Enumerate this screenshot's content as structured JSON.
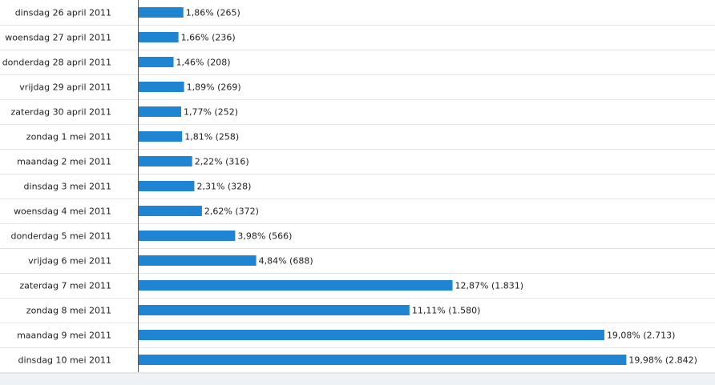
{
  "chart_data": {
    "type": "bar",
    "orientation": "horizontal",
    "categories": [
      "dinsdag 26 april 2011",
      "woensdag 27 april 2011",
      "donderdag 28 april 2011",
      "vrijdag 29 april 2011",
      "zaterdag 30 april 2011",
      "zondag 1 mei 2011",
      "maandag 2 mei 2011",
      "dinsdag 3 mei 2011",
      "woensdag 4 mei 2011",
      "donderdag 5 mei 2011",
      "vrijdag 6 mei 2011",
      "zaterdag 7 mei 2011",
      "zondag 8 mei 2011",
      "maandag 9 mei 2011",
      "dinsdag 10 mei 2011"
    ],
    "values": [
      1.86,
      1.66,
      1.46,
      1.89,
      1.77,
      1.81,
      2.22,
      2.31,
      2.62,
      3.98,
      4.84,
      12.87,
      11.11,
      19.08,
      19.98
    ],
    "counts": [
      265,
      236,
      208,
      269,
      252,
      258,
      316,
      328,
      372,
      566,
      688,
      1831,
      1580,
      2713,
      2842
    ],
    "data_labels": [
      "1,86% (265)",
      "1,66% (236)",
      "1,46% (208)",
      "1,89% (269)",
      "1,77% (252)",
      "1,81% (258)",
      "2,22% (316)",
      "2,31% (328)",
      "2,62% (372)",
      "3,98% (566)",
      "4,84% (688)",
      "12,87% (1.831)",
      "11,11% (1.580)",
      "19,08% (2.713)",
      "19,98% (2.842)"
    ],
    "unit": "%",
    "xlim": [
      0,
      20
    ],
    "title": "",
    "xlabel": "",
    "ylabel": "",
    "legend": "none",
    "bar_color": "#1f84d2"
  }
}
